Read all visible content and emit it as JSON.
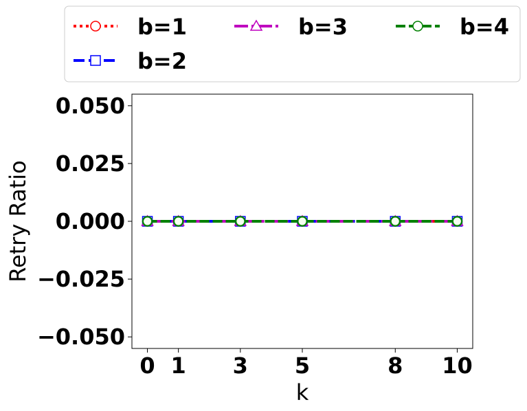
{
  "chart_data": {
    "type": "line",
    "title": "",
    "xlabel": "k",
    "ylabel": "Retry Ratio",
    "x": [
      0,
      1,
      3,
      5,
      8,
      10
    ],
    "x_ticks": [
      "0",
      "1",
      "3",
      "5",
      "8",
      "10"
    ],
    "xlim": [
      -0.5,
      10.5
    ],
    "ylim": [
      -0.055,
      0.055
    ],
    "y_ticks": [
      "0.050",
      "0.025",
      "0.000",
      "−0.025",
      "−0.050"
    ],
    "grid": false,
    "legend_position": "top, outside plot, 3 columns",
    "series": [
      {
        "name": "b=1",
        "values": [
          0,
          0,
          0,
          0,
          0,
          0
        ],
        "color": "#ff0000",
        "linestyle": "dotted",
        "marker": "circle"
      },
      {
        "name": "b=2",
        "values": [
          0,
          0,
          0,
          0,
          0,
          0
        ],
        "color": "#0000ff",
        "linestyle": "dashed",
        "marker": "square"
      },
      {
        "name": "b=3",
        "values": [
          0,
          0,
          0,
          0,
          0,
          0
        ],
        "color": "#bf00bf",
        "linestyle": "dashdot",
        "marker": "triangle"
      },
      {
        "name": "b=4",
        "values": [
          0,
          0,
          0,
          0,
          0,
          0
        ],
        "color": "#008000",
        "linestyle": "dashed-long",
        "marker": "circle"
      }
    ]
  }
}
